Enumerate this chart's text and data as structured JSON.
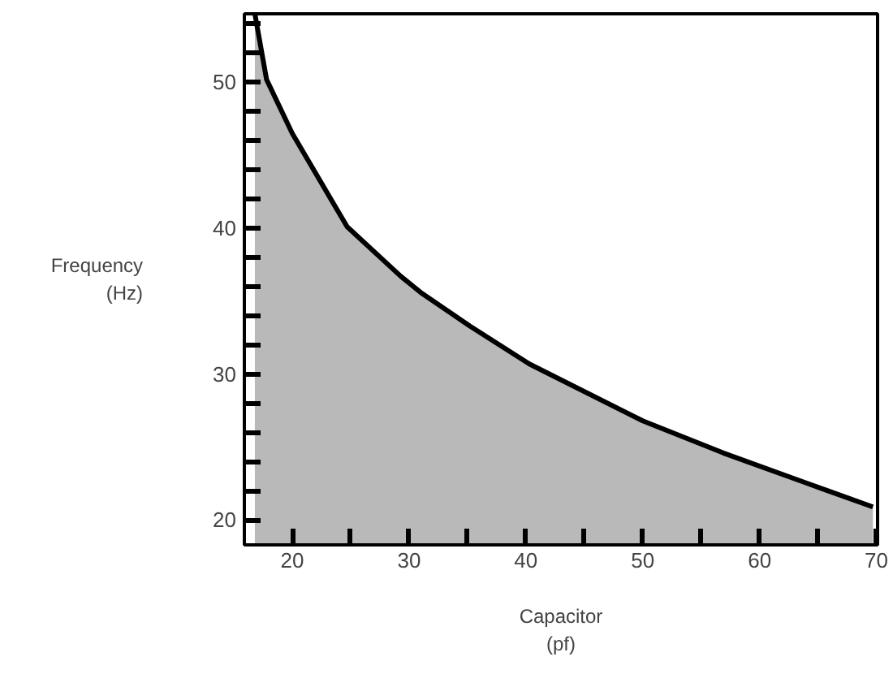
{
  "chart_data": {
    "type": "area",
    "xlabel": "Capacitor\n(pf)",
    "ylabel": "Frequency\n(Hz)",
    "x": [
      16.8,
      17.8,
      20,
      24.7,
      29.3,
      31,
      35.2,
      40.3,
      50,
      56.9,
      63.8,
      69.7
    ],
    "series": [
      {
        "color": "#a8a8a8",
        "values": [
          54.7,
          50.2,
          46.5,
          40.1,
          36.7,
          35.6,
          33.3,
          30.7,
          26.8,
          24.6,
          22.6,
          20.9
        ]
      }
    ],
    "xlim": [
      15.9,
      70.1
    ],
    "ylim": [
      18.3,
      54.7
    ],
    "xticks": [
      20,
      {
        "value": 25,
        "label": null
      },
      30,
      {
        "value": 35,
        "label": null
      },
      40,
      {
        "value": 45,
        "label": null
      },
      50,
      {
        "value": 55,
        "label": null
      },
      60,
      {
        "value": 65,
        "label": null
      },
      70
    ],
    "yticks": [
      20,
      {
        "value": 22,
        "label": null
      },
      {
        "value": 24,
        "label": null
      },
      {
        "value": 26,
        "label": null
      },
      {
        "value": 28,
        "label": null
      },
      30,
      {
        "value": 32,
        "label": null
      },
      {
        "value": 34,
        "label": null
      },
      {
        "value": 36,
        "label": null
      },
      {
        "value": 38,
        "label": null
      },
      40,
      {
        "value": 42,
        "label": null
      },
      {
        "value": 44,
        "label": null
      },
      {
        "value": 46,
        "label": null
      },
      {
        "value": 48,
        "label": null
      },
      50,
      {
        "value": 52,
        "label": null
      },
      {
        "value": 54,
        "label": null
      }
    ],
    "grid": false
  }
}
